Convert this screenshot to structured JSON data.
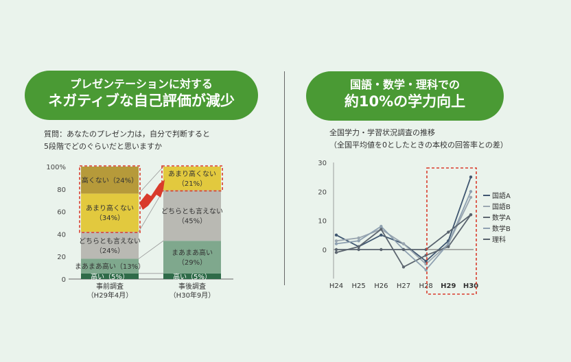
{
  "left_panel": {
    "banner_line1": "プレゼンテーションに対する",
    "banner_line2": "ネガティブな自己評価が減少",
    "question_line1": "質問：あなたのプレゼン力は，自分で判断すると",
    "question_line2": "5段階でどのぐらいだと思いますか"
  },
  "right_panel": {
    "banner_line1": "国語・数学・理科での",
    "banner_line2": "約10%の学力向上",
    "subtitle_line1": "全国学力・学習状況調査の推移",
    "subtitle_line2": "（全国平均値を0としたときの本校の回答率との差）"
  },
  "colors": {
    "accent_green": "#4a9a34",
    "highlight_red": "#d93b2b",
    "seg_takai": "#2f6b49",
    "seg_maamaa": "#7fa88d",
    "seg_dochira": "#b9b9b3",
    "seg_amari": "#e2c93e",
    "seg_takakunai": "#b69a3a"
  },
  "chart_data": [
    {
      "type": "bar",
      "stacked": true,
      "categories": [
        "事前調査",
        "事後調査"
      ],
      "category_sublabels": [
        "（H29年4月）",
        "（H30年9月）"
      ],
      "y_ticks": [
        "0",
        "20",
        "40",
        "60",
        "80",
        "100%"
      ],
      "ylim": [
        0,
        100
      ],
      "series": [
        {
          "name": "高い",
          "values": [
            5,
            5
          ],
          "labels": [
            "高い（5%）",
            "高い（5%）"
          ],
          "color": "#2f6b49"
        },
        {
          "name": "まあまあ高い",
          "values": [
            13,
            29
          ],
          "labels": [
            "まあまあ高い（13%）",
            "まあまあ高い\n（29%）"
          ],
          "color": "#7fa88d"
        },
        {
          "name": "どちらとも言えない",
          "values": [
            24,
            45
          ],
          "labels": [
            "どちらとも言えない\n（24%）",
            "どちらとも言えない\n（45%）"
          ],
          "color": "#b9b9b3"
        },
        {
          "name": "あまり高くない",
          "values": [
            34,
            21
          ],
          "labels": [
            "あまり高くない\n（34%）",
            "あまり高くない\n（21%）"
          ],
          "color": "#e2c93e"
        },
        {
          "name": "高くない",
          "values": [
            24,
            0
          ],
          "labels": [
            "高くない（24%）",
            ""
          ],
          "color": "#b69a3a"
        }
      ]
    },
    {
      "type": "line",
      "x": [
        "H24",
        "H25",
        "H26",
        "H27",
        "H28",
        "H29",
        "H30"
      ],
      "ylim": [
        -10,
        30
      ],
      "y_ticks": [
        "30",
        "20",
        "10",
        "0"
      ],
      "series": [
        {
          "name": "国語A",
          "values": [
            5,
            1,
            5,
            2,
            -4,
            3,
            25
          ],
          "color": "#3f5670"
        },
        {
          "name": "国語B",
          "values": [
            3,
            4,
            7,
            2,
            -5,
            2,
            18
          ],
          "color": "#9aa6b0"
        },
        {
          "name": "数学A",
          "values": [
            -1,
            1,
            7,
            -6,
            -2,
            1,
            12
          ],
          "color": "#5d6670"
        },
        {
          "name": "数学B",
          "values": [
            2,
            3,
            8,
            0,
            -7,
            2,
            20
          ],
          "color": "#8ea0b0"
        },
        {
          "name": "理科",
          "values": [
            0,
            0,
            0,
            0,
            0,
            6,
            12
          ],
          "color": "#58626d"
        }
      ]
    }
  ]
}
